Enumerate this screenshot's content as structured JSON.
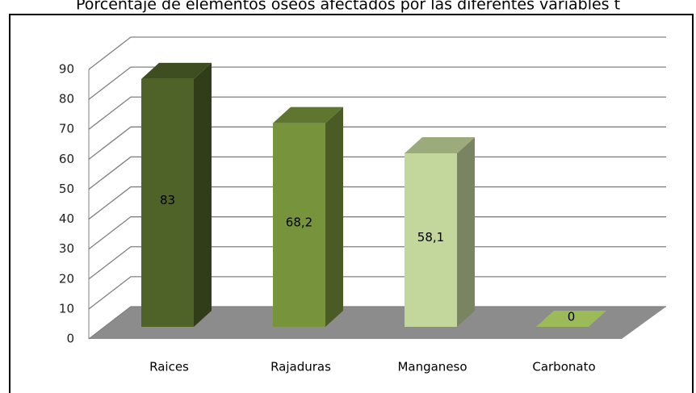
{
  "chart_data": {
    "type": "bar3d",
    "title": "Porcentaje de elementos óseos afectados por las diferentes variables t",
    "categories": [
      "Raices",
      "Rajaduras",
      "Manganeso",
      "Carbonato"
    ],
    "values": [
      83,
      68.2,
      58.1,
      0
    ],
    "value_labels": [
      "83",
      "68,2",
      "58,1",
      "0"
    ],
    "colors": [
      "#4f6228",
      "#77933c",
      "#c3d69b",
      "#9bbb59"
    ],
    "ylim": [
      0,
      90
    ],
    "yticks": [
      0,
      10,
      20,
      30,
      40,
      50,
      60,
      70,
      80,
      90
    ],
    "grid": true
  }
}
